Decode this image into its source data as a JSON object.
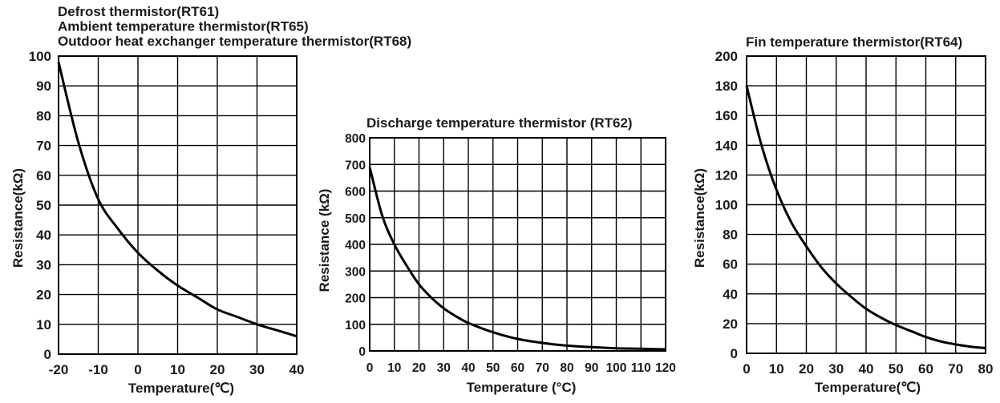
{
  "chart_data": [
    {
      "type": "line",
      "title_lines": [
        "Defrost thermistor(RT61)",
        "Ambient temperature thermistor(RT65)",
        "Outdoor heat exchanger temperature thermistor(RT68)"
      ],
      "xlabel": "Temperature(℃)",
      "ylabel": "Resistance(kΩ)",
      "xlim": [
        -20,
        40
      ],
      "ylim": [
        0,
        100
      ],
      "x_ticks": [
        "-20",
        "-10",
        "0",
        "10",
        "20",
        "30",
        "40"
      ],
      "y_ticks": [
        "0",
        "10",
        "20",
        "30",
        "40",
        "50",
        "60",
        "70",
        "80",
        "90",
        "100"
      ],
      "grid": true,
      "x": [
        -20,
        -15,
        -10,
        -5,
        0,
        5,
        10,
        15,
        20,
        25,
        30,
        35,
        40
      ],
      "y": [
        98,
        71,
        52,
        42,
        34,
        28,
        23,
        19,
        15,
        12.5,
        10,
        8,
        6
      ]
    },
    {
      "type": "line",
      "title_lines": [
        "Discharge temperature thermistor (RT62)"
      ],
      "xlabel": "Temperature (°C)",
      "ylabel": "Resistance (kΩ)",
      "xlim": [
        0,
        120
      ],
      "ylim": [
        0,
        800
      ],
      "x_ticks": [
        "0",
        "10",
        "20",
        "30",
        "40",
        "50",
        "60",
        "70",
        "80",
        "90",
        "100",
        "110",
        "120"
      ],
      "y_ticks": [
        "0",
        "100",
        "200",
        "300",
        "400",
        "500",
        "600",
        "700",
        "800"
      ],
      "grid": true,
      "x": [
        0,
        5,
        10,
        15,
        20,
        25,
        30,
        35,
        40,
        50,
        60,
        70,
        80,
        90,
        100,
        110,
        120
      ],
      "y": [
        690,
        510,
        400,
        320,
        250,
        200,
        160,
        130,
        105,
        70,
        45,
        30,
        20,
        14,
        10,
        8,
        6
      ]
    },
    {
      "type": "line",
      "title_lines": [
        "Fin temperature thermistor(RT64)"
      ],
      "xlabel": "Temperature(℃)",
      "ylabel": "Resistance(kΩ)",
      "xlim": [
        0,
        80
      ],
      "ylim": [
        0,
        200
      ],
      "x_ticks": [
        "0",
        "10",
        "20",
        "30",
        "40",
        "50",
        "60",
        "70",
        "80"
      ],
      "y_ticks": [
        "0",
        "20",
        "40",
        "60",
        "80",
        "100",
        "120",
        "140",
        "160",
        "180",
        "200"
      ],
      "grid": true,
      "x": [
        0,
        5,
        10,
        15,
        20,
        25,
        30,
        35,
        40,
        45,
        50,
        55,
        60,
        65,
        70,
        75,
        80
      ],
      "y": [
        180,
        140,
        110,
        88,
        72,
        58,
        47,
        38,
        30,
        24,
        19,
        15,
        11,
        8,
        6,
        4.5,
        3.5
      ]
    }
  ]
}
